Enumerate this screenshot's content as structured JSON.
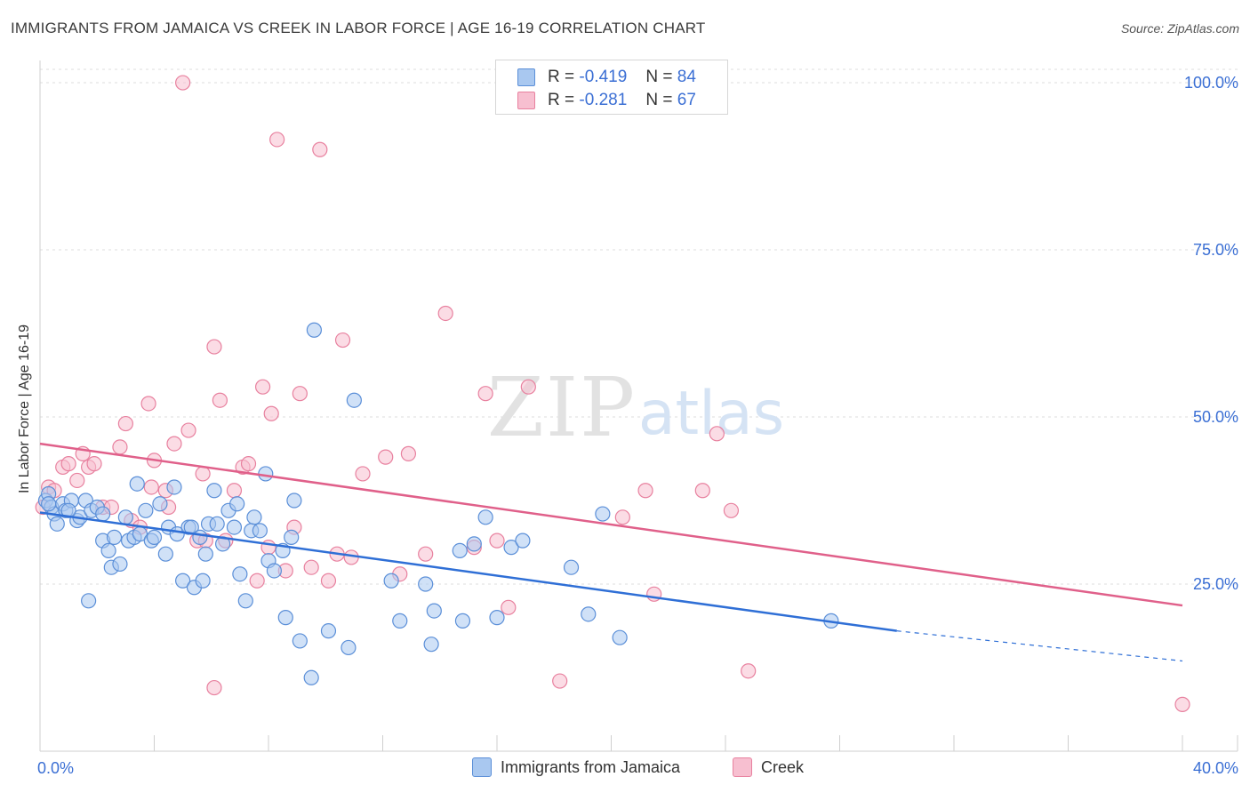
{
  "header": {
    "title": "IMMIGRANTS FROM JAMAICA VS CREEK IN LABOR FORCE | AGE 16-19 CORRELATION CHART",
    "source": "Source: ZipAtlas.com"
  },
  "watermark": {
    "zip": "ZIP",
    "atlas": "atlas"
  },
  "legend_top": [
    {
      "r_label": "R =",
      "r_value": "-0.419",
      "n_label": "N =",
      "n_value": "84"
    },
    {
      "r_label": "R =",
      "r_value": "-0.281",
      "n_label": "N =",
      "n_value": "67"
    }
  ],
  "legend_bottom": [
    "Immigrants from Jamaica",
    "Creek"
  ],
  "colors": {
    "jamaica_fill": "#a9c8f0",
    "jamaica_stroke": "#5b8fd8",
    "jamaica_line": "#2f6fd6",
    "creek_fill": "#f7bfd0",
    "creek_stroke": "#e8819f",
    "creek_line": "#e0608a",
    "axis_label": "#3b6fd4",
    "grid": "#dddddd"
  },
  "chart_data": {
    "type": "scatter",
    "title": "IMMIGRANTS FROM JAMAICA VS CREEK IN LABOR FORCE | AGE 16-19 CORRELATION CHART",
    "xlabel": "",
    "ylabel": "In Labor Force | Age 16-19",
    "xlim": [
      0,
      40
    ],
    "ylim": [
      0,
      102
    ],
    "x_tick_labels": [
      "0.0%",
      "40.0%"
    ],
    "y_ticks": [
      25,
      50,
      75,
      100
    ],
    "y_tick_labels": [
      "25.0%",
      "50.0%",
      "75.0%",
      "100.0%"
    ],
    "series": [
      {
        "name": "Immigrants from Jamaica",
        "r": -0.419,
        "n": 84,
        "trend": {
          "x0": 0,
          "y0": 35.7,
          "x1": 30,
          "y1": 18.0,
          "dash_x1": 40,
          "dash_y1": 13.5
        },
        "points": [
          [
            0.2,
            37.5
          ],
          [
            0.3,
            38.5
          ],
          [
            0.4,
            36.5
          ],
          [
            0.5,
            35.5
          ],
          [
            0.6,
            34.0
          ],
          [
            0.8,
            37.0
          ],
          [
            0.9,
            36.0
          ],
          [
            1.1,
            37.5
          ],
          [
            1.3,
            34.5
          ],
          [
            1.4,
            35.0
          ],
          [
            1.6,
            37.5
          ],
          [
            1.8,
            36.0
          ],
          [
            2.0,
            36.5
          ],
          [
            1.7,
            22.5
          ],
          [
            2.2,
            31.5
          ],
          [
            2.4,
            30.0
          ],
          [
            2.5,
            27.5
          ],
          [
            2.6,
            32.0
          ],
          [
            2.8,
            28.0
          ],
          [
            3.0,
            35.0
          ],
          [
            3.1,
            31.5
          ],
          [
            3.3,
            32.0
          ],
          [
            3.4,
            40.0
          ],
          [
            3.5,
            32.5
          ],
          [
            3.7,
            36.0
          ],
          [
            3.9,
            31.5
          ],
          [
            4.0,
            32.0
          ],
          [
            4.2,
            37.0
          ],
          [
            4.4,
            29.5
          ],
          [
            4.5,
            33.5
          ],
          [
            4.7,
            39.5
          ],
          [
            4.8,
            32.5
          ],
          [
            5.0,
            25.5
          ],
          [
            5.2,
            33.5
          ],
          [
            5.3,
            33.5
          ],
          [
            5.4,
            24.5
          ],
          [
            5.6,
            32.0
          ],
          [
            5.7,
            25.5
          ],
          [
            5.8,
            29.5
          ],
          [
            5.9,
            34.0
          ],
          [
            6.1,
            39.0
          ],
          [
            6.2,
            34.0
          ],
          [
            6.4,
            31.0
          ],
          [
            6.6,
            36.0
          ],
          [
            6.8,
            33.5
          ],
          [
            6.9,
            37.0
          ],
          [
            7.0,
            26.5
          ],
          [
            7.2,
            22.5
          ],
          [
            7.4,
            33.0
          ],
          [
            7.5,
            35.0
          ],
          [
            7.7,
            33.0
          ],
          [
            7.9,
            41.5
          ],
          [
            8.0,
            28.5
          ],
          [
            8.2,
            27.0
          ],
          [
            8.5,
            30.0
          ],
          [
            8.6,
            20.0
          ],
          [
            8.8,
            32.0
          ],
          [
            8.9,
            37.5
          ],
          [
            9.1,
            16.5
          ],
          [
            9.5,
            11.0
          ],
          [
            9.6,
            63.0
          ],
          [
            10.1,
            18.0
          ],
          [
            10.8,
            15.5
          ],
          [
            11.0,
            52.5
          ],
          [
            12.3,
            25.5
          ],
          [
            12.6,
            19.5
          ],
          [
            13.5,
            25.0
          ],
          [
            13.7,
            16.0
          ],
          [
            13.8,
            21.0
          ],
          [
            14.7,
            30.0
          ],
          [
            14.8,
            19.5
          ],
          [
            15.2,
            31.0
          ],
          [
            15.6,
            35.0
          ],
          [
            16.0,
            20.0
          ],
          [
            16.5,
            30.5
          ],
          [
            16.9,
            31.5
          ],
          [
            18.6,
            27.5
          ],
          [
            19.2,
            20.5
          ],
          [
            19.7,
            35.5
          ],
          [
            20.3,
            17.0
          ],
          [
            27.7,
            19.5
          ],
          [
            0.3,
            37.0
          ],
          [
            1.0,
            36.0
          ],
          [
            2.2,
            35.5
          ]
        ]
      },
      {
        "name": "Creek",
        "r": -0.281,
        "n": 67,
        "trend": {
          "x0": 0,
          "y0": 46.0,
          "x1": 40,
          "y1": 21.8
        },
        "points": [
          [
            0.1,
            36.5
          ],
          [
            0.3,
            39.5
          ],
          [
            0.5,
            39.0
          ],
          [
            0.8,
            42.5
          ],
          [
            1.0,
            43.0
          ],
          [
            1.3,
            40.5
          ],
          [
            1.5,
            44.5
          ],
          [
            1.7,
            42.5
          ],
          [
            1.9,
            43.0
          ],
          [
            2.2,
            36.5
          ],
          [
            2.5,
            36.5
          ],
          [
            2.8,
            45.5
          ],
          [
            3.0,
            49.0
          ],
          [
            3.2,
            34.5
          ],
          [
            3.5,
            33.5
          ],
          [
            3.8,
            52.0
          ],
          [
            3.9,
            39.5
          ],
          [
            4.0,
            43.5
          ],
          [
            4.4,
            39.0
          ],
          [
            4.5,
            36.5
          ],
          [
            4.7,
            46.0
          ],
          [
            5.0,
            100.0
          ],
          [
            5.2,
            48.0
          ],
          [
            5.5,
            31.5
          ],
          [
            5.7,
            41.5
          ],
          [
            5.8,
            31.5
          ],
          [
            6.1,
            9.5
          ],
          [
            6.1,
            60.5
          ],
          [
            6.3,
            52.5
          ],
          [
            6.5,
            31.5
          ],
          [
            6.8,
            39.0
          ],
          [
            7.1,
            42.5
          ],
          [
            7.3,
            43.0
          ],
          [
            7.6,
            25.5
          ],
          [
            7.8,
            54.5
          ],
          [
            8.0,
            30.5
          ],
          [
            8.1,
            50.5
          ],
          [
            8.3,
            91.5
          ],
          [
            8.6,
            27.0
          ],
          [
            8.9,
            33.5
          ],
          [
            9.1,
            53.5
          ],
          [
            9.5,
            27.5
          ],
          [
            9.8,
            90.0
          ],
          [
            10.1,
            25.5
          ],
          [
            10.4,
            29.5
          ],
          [
            10.6,
            61.5
          ],
          [
            10.9,
            29.0
          ],
          [
            11.3,
            41.5
          ],
          [
            12.1,
            44.0
          ],
          [
            12.6,
            26.5
          ],
          [
            12.9,
            44.5
          ],
          [
            13.5,
            29.5
          ],
          [
            14.2,
            65.5
          ],
          [
            15.2,
            30.5
          ],
          [
            15.6,
            53.5
          ],
          [
            16.0,
            31.5
          ],
          [
            16.4,
            21.5
          ],
          [
            17.1,
            54.5
          ],
          [
            18.2,
            10.5
          ],
          [
            20.4,
            35.0
          ],
          [
            21.2,
            39.0
          ],
          [
            21.5,
            23.5
          ],
          [
            23.2,
            39.0
          ],
          [
            23.7,
            47.5
          ],
          [
            24.2,
            36.0
          ],
          [
            24.8,
            12.0
          ],
          [
            40.0,
            7.0
          ]
        ]
      }
    ]
  }
}
